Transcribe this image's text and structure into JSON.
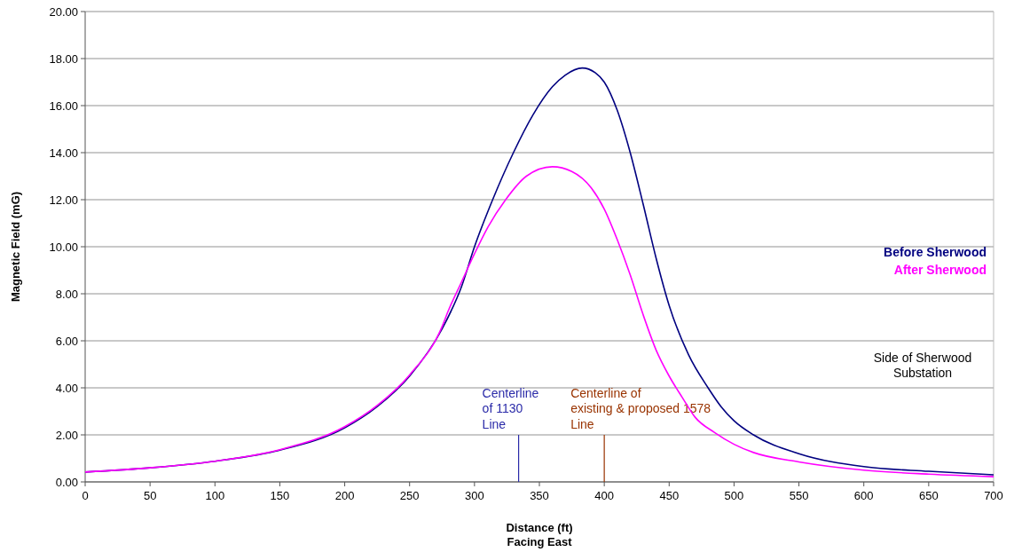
{
  "chart_data": {
    "type": "line",
    "xlabel": "Distance (ft)\nFacing East",
    "ylabel": "Magnetic Field (mG)",
    "xlim": [
      0,
      700
    ],
    "xticks": [
      0,
      50,
      100,
      150,
      200,
      250,
      300,
      350,
      400,
      450,
      500,
      550,
      600,
      650,
      700
    ],
    "ylim": [
      0,
      20
    ],
    "yticks": [
      {
        "value": 0,
        "label": "0.00"
      },
      {
        "value": 2,
        "label": "2.00"
      },
      {
        "value": 4,
        "label": "4.00"
      },
      {
        "value": 6,
        "label": "6.00"
      },
      {
        "value": 8,
        "label": "8.00"
      },
      {
        "value": 10,
        "label": "10.00"
      },
      {
        "value": 12,
        "label": "12.00"
      },
      {
        "value": 14,
        "label": "14.00"
      },
      {
        "value": 16,
        "label": "16.00"
      },
      {
        "value": 18,
        "label": "18.00"
      },
      {
        "value": 20,
        "label": "20.00"
      }
    ],
    "grid": "y",
    "legend": "right",
    "marker": "none",
    "line_style": "solid",
    "series": [
      {
        "name": "Before Sherwood",
        "color": "#000080",
        "x": [
          0,
          50,
          100,
          150,
          200,
          225,
          250,
          275,
          290,
          300,
          314,
          330,
          345,
          360,
          370,
          383,
          393,
          400,
          410,
          420,
          430,
          440,
          450,
          465,
          480,
          490,
          500,
          515,
          550,
          600,
          650,
          700
        ],
        "values": [
          0.42,
          0.6,
          0.88,
          1.35,
          2.3,
          3.2,
          4.5,
          6.5,
          8.3,
          10.0,
          12.0,
          14.0,
          15.6,
          16.8,
          17.3,
          17.6,
          17.4,
          17.0,
          15.8,
          14.0,
          11.8,
          9.5,
          7.5,
          5.4,
          4.0,
          3.2,
          2.6,
          2.0,
          1.2,
          0.65,
          0.45,
          0.3
        ]
      },
      {
        "name": "After Sherwood",
        "color": "#ff00ff",
        "x": [
          0,
          50,
          100,
          150,
          200,
          225,
          250,
          275,
          280,
          290,
          300,
          310,
          324,
          340,
          360,
          375,
          390,
          400,
          410,
          420,
          430,
          440,
          450,
          460,
          470,
          485,
          500,
          515,
          550,
          600,
          650,
          700
        ],
        "values": [
          0.42,
          0.6,
          0.88,
          1.37,
          2.35,
          3.25,
          4.55,
          6.6,
          7.3,
          8.5,
          9.7,
          10.8,
          12.0,
          13.0,
          13.4,
          13.2,
          12.5,
          11.6,
          10.3,
          8.8,
          7.1,
          5.6,
          4.5,
          3.6,
          2.75,
          2.1,
          1.6,
          1.25,
          0.85,
          0.5,
          0.33,
          0.22
        ]
      }
    ],
    "ref_lines": [
      {
        "axis": "x",
        "value": 334,
        "label": "Centerline\nof 1130\nLine",
        "color": "#2a2aa8"
      },
      {
        "axis": "x",
        "value": 400,
        "label": "Centerline of\nexisting & proposed 1578\nLine",
        "color": "#993300"
      }
    ],
    "annotations": [
      "Side of Sherwood\nSubstation"
    ]
  }
}
